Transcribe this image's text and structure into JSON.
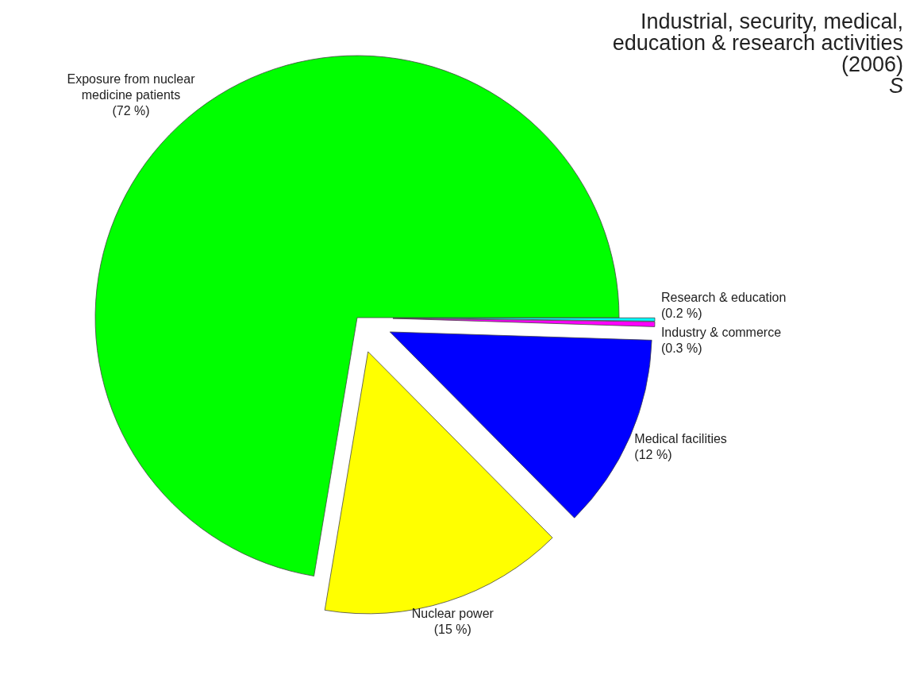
{
  "chart_data": {
    "type": "pie",
    "title": "Industrial, security, medical, education & research activities (2006)",
    "subtitle": "S",
    "categories": [
      "Research & education",
      "Industry & commerce",
      "Medical facilities",
      "Nuclear power",
      "Exposure from nuclear medicine patients"
    ],
    "values": [
      0.2,
      0.3,
      12,
      15,
      72
    ],
    "value_labels": [
      "(0.2 %)",
      "(0.3 %)",
      "(12 %)",
      "(15 %)",
      "(72 %)"
    ],
    "colors": [
      "#00ffff",
      "#ff00ff",
      "#0000ff",
      "#ffff00",
      "#00ff00"
    ],
    "legend": false
  }
}
